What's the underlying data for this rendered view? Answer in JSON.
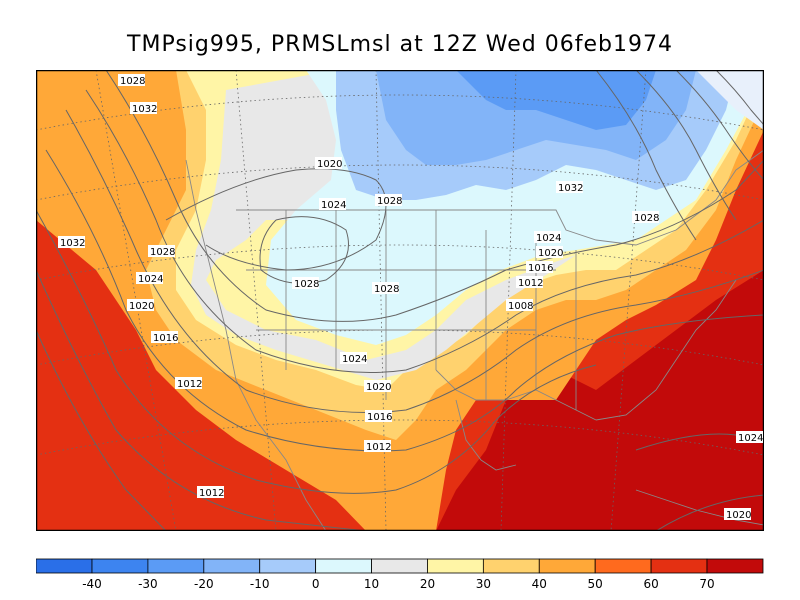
{
  "title": "TMPsig995, PRMSLmsl at 12Z Wed 06feb1974",
  "legend": {
    "colors": [
      "#2a6fe8",
      "#3d84f0",
      "#5b9bf5",
      "#82b4f8",
      "#a6cbfa",
      "#dcf8fd",
      "#e8e8e8",
      "#fff5a6",
      "#ffd26e",
      "#ffa838",
      "#ff6a1e",
      "#e43012",
      "#c20a0a"
    ],
    "ticks": [
      "-40",
      "-30",
      "-20",
      "-10",
      "0",
      "10",
      "20",
      "30",
      "40",
      "50",
      "60",
      "70"
    ]
  },
  "isobar_labels": [
    "1028",
    "1032",
    "1020",
    "1024",
    "1028",
    "1032",
    "1028",
    "1032",
    "1028",
    "1024",
    "1020",
    "1016",
    "1012",
    "1028",
    "1024",
    "1028",
    "1020",
    "1016",
    "1008",
    "1024",
    "1012",
    "1020",
    "1016",
    "1012",
    "1012",
    "1024",
    "1020"
  ],
  "zone_colors": {
    "red": "#e43012",
    "darkred": "#c20a0a",
    "orange": "#ffa838",
    "lightorange": "#ffd26e",
    "yellow": "#fff5a6",
    "gray": "#e8e8e8",
    "cyan": "#dcf8fd",
    "lightblue": "#a6cbfa",
    "blue": "#82b4f8",
    "deepblue": "#5b9bf5",
    "coastline": "#888888",
    "isobar": "#666666"
  }
}
